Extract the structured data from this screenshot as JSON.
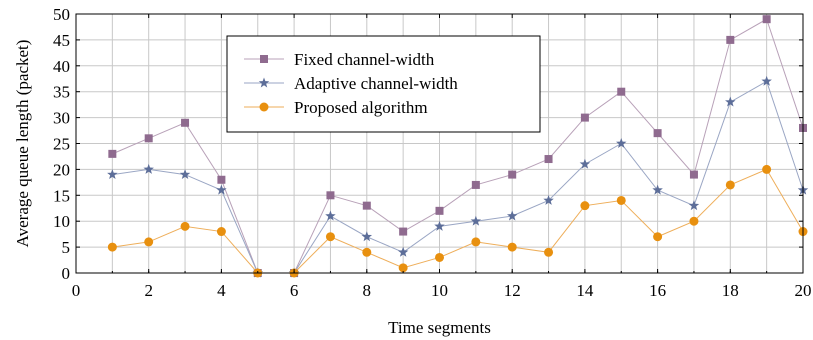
{
  "chart_data": {
    "type": "line",
    "xlabel": "Time segments",
    "ylabel": "Average queue length (packet)",
    "xlim": [
      0,
      20
    ],
    "ylim": [
      0,
      50
    ],
    "xticks": [
      "0",
      "2",
      "4",
      "6",
      "8",
      "10",
      "12",
      "14",
      "16",
      "18",
      "20"
    ],
    "yticks": [
      "0",
      "5",
      "10",
      "15",
      "20",
      "25",
      "30",
      "35",
      "40",
      "45",
      "50"
    ],
    "grid": true,
    "legend_position": "top-center",
    "x": [
      1,
      2,
      3,
      4,
      5,
      6,
      7,
      8,
      9,
      10,
      11,
      12,
      13,
      14,
      15,
      16,
      17,
      18,
      19,
      20
    ],
    "series": [
      {
        "name": "Fixed channel-width",
        "marker": "square",
        "color": "#8f6b8f",
        "line_color": "#b8a1b8",
        "values": [
          23,
          26,
          29,
          18,
          0,
          0,
          15,
          13,
          8,
          12,
          17,
          19,
          22,
          30,
          35,
          27,
          19,
          45,
          49,
          28
        ]
      },
      {
        "name": "Adaptive channel-width",
        "marker": "star",
        "color": "#5d6e99",
        "line_color": "#9aa6c4",
        "values": [
          19,
          20,
          19,
          16,
          0,
          0,
          11,
          7,
          4,
          9,
          10,
          11,
          14,
          21,
          25,
          16,
          13,
          33,
          37,
          16
        ]
      },
      {
        "name": "Proposed algorithm",
        "marker": "circle",
        "color": "#e8900f",
        "line_color": "#eeae5a",
        "values": [
          5,
          6,
          9,
          8,
          0,
          0,
          7,
          4,
          1,
          3,
          6,
          5,
          4,
          13,
          14,
          7,
          10,
          17,
          20,
          8
        ]
      }
    ]
  }
}
